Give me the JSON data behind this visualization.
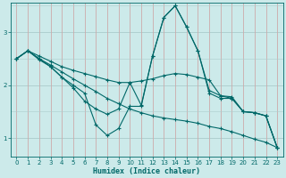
{
  "xlabel": "Humidex (Indice chaleur)",
  "bg_color": "#cceaea",
  "line_color": "#006868",
  "grid_color_h": "#aacccc",
  "grid_color_v": "#ccaaaa",
  "xlim": [
    -0.5,
    23.5
  ],
  "ylim": [
    0.65,
    3.55
  ],
  "yticks": [
    1,
    2,
    3
  ],
  "xticks": [
    0,
    1,
    2,
    3,
    4,
    5,
    6,
    7,
    8,
    9,
    10,
    11,
    12,
    13,
    14,
    15,
    16,
    17,
    18,
    19,
    20,
    21,
    22,
    23
  ],
  "lines": [
    {
      "x": [
        0,
        1,
        2,
        3,
        4,
        5,
        6,
        7,
        8,
        9,
        10,
        11,
        12,
        13,
        14,
        15,
        16,
        17,
        18,
        19,
        20,
        21,
        22,
        23
      ],
      "y": [
        2.5,
        2.65,
        2.5,
        2.38,
        2.25,
        2.12,
        2.0,
        1.88,
        1.75,
        1.65,
        1.55,
        1.48,
        1.42,
        1.38,
        1.35,
        1.32,
        1.28,
        1.22,
        1.18,
        1.12,
        1.05,
        0.98,
        0.92,
        0.82
      ]
    },
    {
      "x": [
        0,
        1,
        2,
        3,
        4,
        5,
        6,
        7,
        8,
        9,
        10,
        11,
        12,
        13,
        14,
        15,
        16,
        17,
        18,
        19,
        20,
        21,
        22,
        23
      ],
      "y": [
        2.5,
        2.65,
        2.5,
        2.35,
        2.15,
        2.0,
        1.85,
        1.25,
        1.05,
        1.18,
        1.6,
        1.6,
        2.55,
        3.28,
        3.5,
        3.1,
        2.65,
        1.85,
        1.75,
        1.75,
        1.5,
        1.48,
        1.42,
        0.82
      ]
    },
    {
      "x": [
        0,
        1,
        2,
        3,
        4,
        5,
        6,
        7,
        8,
        9,
        10,
        11,
        12,
        13,
        14,
        15,
        16,
        17,
        18,
        19,
        20,
        21,
        22,
        23
      ],
      "y": [
        2.5,
        2.65,
        2.48,
        2.35,
        2.15,
        1.95,
        1.7,
        1.55,
        1.45,
        1.55,
        2.05,
        1.62,
        2.55,
        3.28,
        3.5,
        3.1,
        2.65,
        1.9,
        1.8,
        1.75,
        1.5,
        1.48,
        1.42,
        0.82
      ]
    },
    {
      "x": [
        0,
        1,
        2,
        3,
        4,
        5,
        6,
        7,
        8,
        9,
        10,
        11,
        12,
        13,
        14,
        15,
        16,
        17,
        18,
        19,
        20,
        21,
        22,
        23
      ],
      "y": [
        2.5,
        2.65,
        2.55,
        2.45,
        2.35,
        2.28,
        2.22,
        2.16,
        2.1,
        2.05,
        2.05,
        2.08,
        2.12,
        2.18,
        2.22,
        2.2,
        2.15,
        2.1,
        1.8,
        1.78,
        1.5,
        1.48,
        1.42,
        0.82
      ]
    }
  ]
}
